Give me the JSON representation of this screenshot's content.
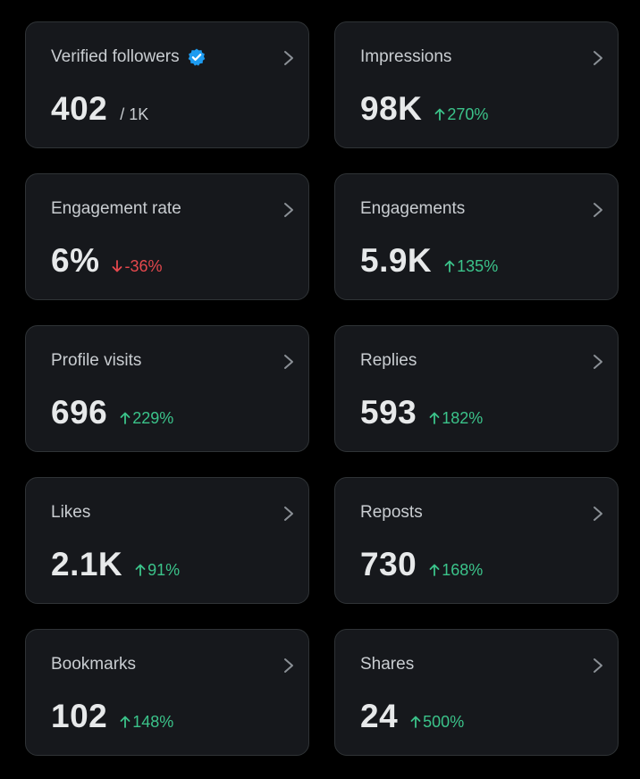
{
  "colors": {
    "background": "#000000",
    "card": "#16181c",
    "positive": "#3bc38a",
    "negative": "#e5484d",
    "verified": "#1d9bf0"
  },
  "cards": [
    {
      "title": "Verified followers",
      "value": "402",
      "sub": "/ 1K",
      "verified": true
    },
    {
      "title": "Impressions",
      "value": "98K",
      "delta": "270%",
      "direction": "up"
    },
    {
      "title": "Engagement rate",
      "value": "6%",
      "delta": "-36%",
      "direction": "down"
    },
    {
      "title": "Engagements",
      "value": "5.9K",
      "delta": "135%",
      "direction": "up"
    },
    {
      "title": "Profile visits",
      "value": "696",
      "delta": "229%",
      "direction": "up"
    },
    {
      "title": "Replies",
      "value": "593",
      "delta": "182%",
      "direction": "up"
    },
    {
      "title": "Likes",
      "value": "2.1K",
      "delta": "91%",
      "direction": "up"
    },
    {
      "title": "Reposts",
      "value": "730",
      "delta": "168%",
      "direction": "up"
    },
    {
      "title": "Bookmarks",
      "value": "102",
      "delta": "148%",
      "direction": "up"
    },
    {
      "title": "Shares",
      "value": "24",
      "delta": "500%",
      "direction": "up"
    }
  ],
  "icons": {
    "chevron": "chevron-right-icon",
    "verified": "verified-badge-icon",
    "up": "arrow-up-icon",
    "down": "arrow-down-icon"
  }
}
